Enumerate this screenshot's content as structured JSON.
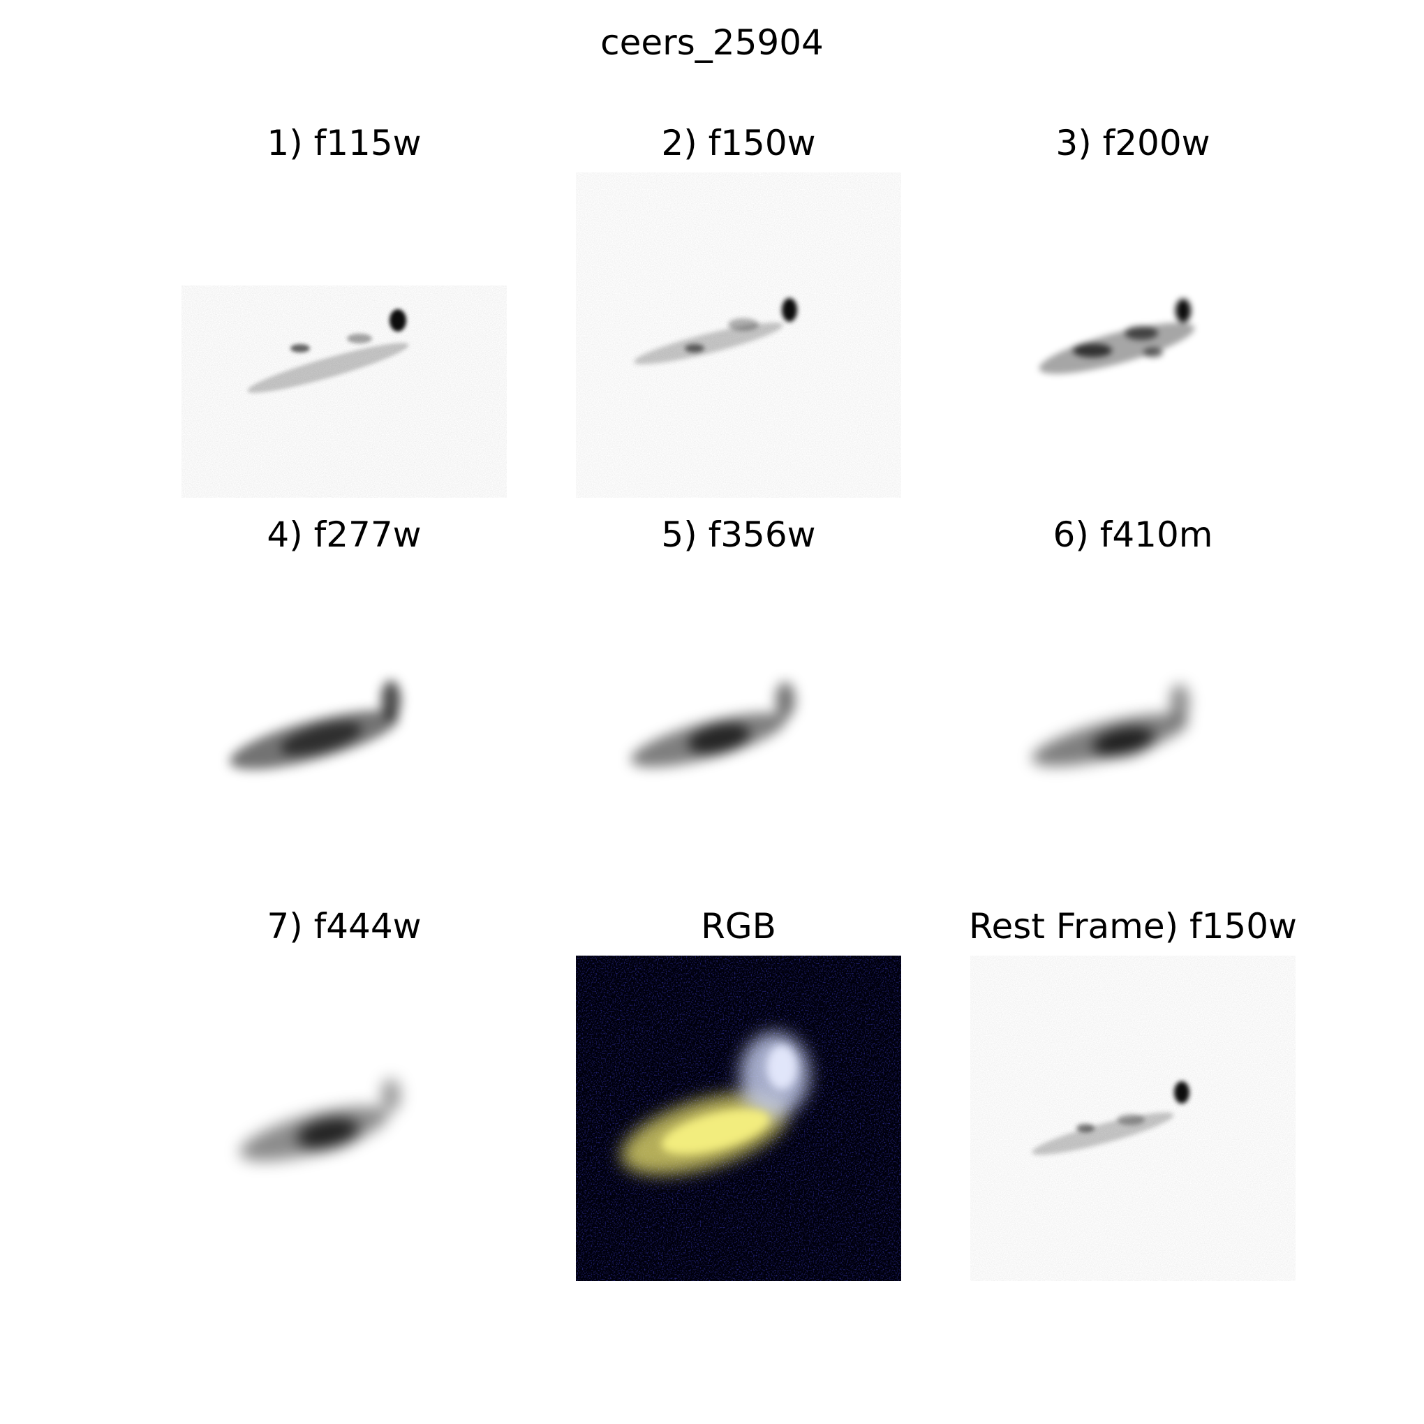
{
  "figure": {
    "title": "ceers_25904"
  },
  "panels": [
    {
      "title": "1) f115w",
      "kind": "mono",
      "icon": "galaxy-cutout-f115w"
    },
    {
      "title": "2) f150w",
      "kind": "mono",
      "icon": "galaxy-cutout-f150w"
    },
    {
      "title": "3) f200w",
      "kind": "mono",
      "icon": "galaxy-cutout-f200w"
    },
    {
      "title": "4) f277w",
      "kind": "mono",
      "icon": "galaxy-cutout-f277w"
    },
    {
      "title": "5) f356w",
      "kind": "mono",
      "icon": "galaxy-cutout-f356w"
    },
    {
      "title": "6) f410m",
      "kind": "mono",
      "icon": "galaxy-cutout-f410m"
    },
    {
      "title": "7) f444w",
      "kind": "mono",
      "icon": "galaxy-cutout-f444w"
    },
    {
      "title": "RGB",
      "kind": "rgb",
      "icon": "galaxy-cutout-rgb"
    },
    {
      "title": "Rest Frame) f150w",
      "kind": "mono",
      "icon": "galaxy-cutout-rest-frame-f150w"
    }
  ],
  "colors": {
    "background": "#ffffff",
    "source_mono": "#000000",
    "rgb_background": "#00000d",
    "rgb_noise": "#0a0a7a",
    "rgb_core": "#f5f080",
    "rgb_body": "#c8c060",
    "rgb_clump": "#d8dcf0"
  }
}
